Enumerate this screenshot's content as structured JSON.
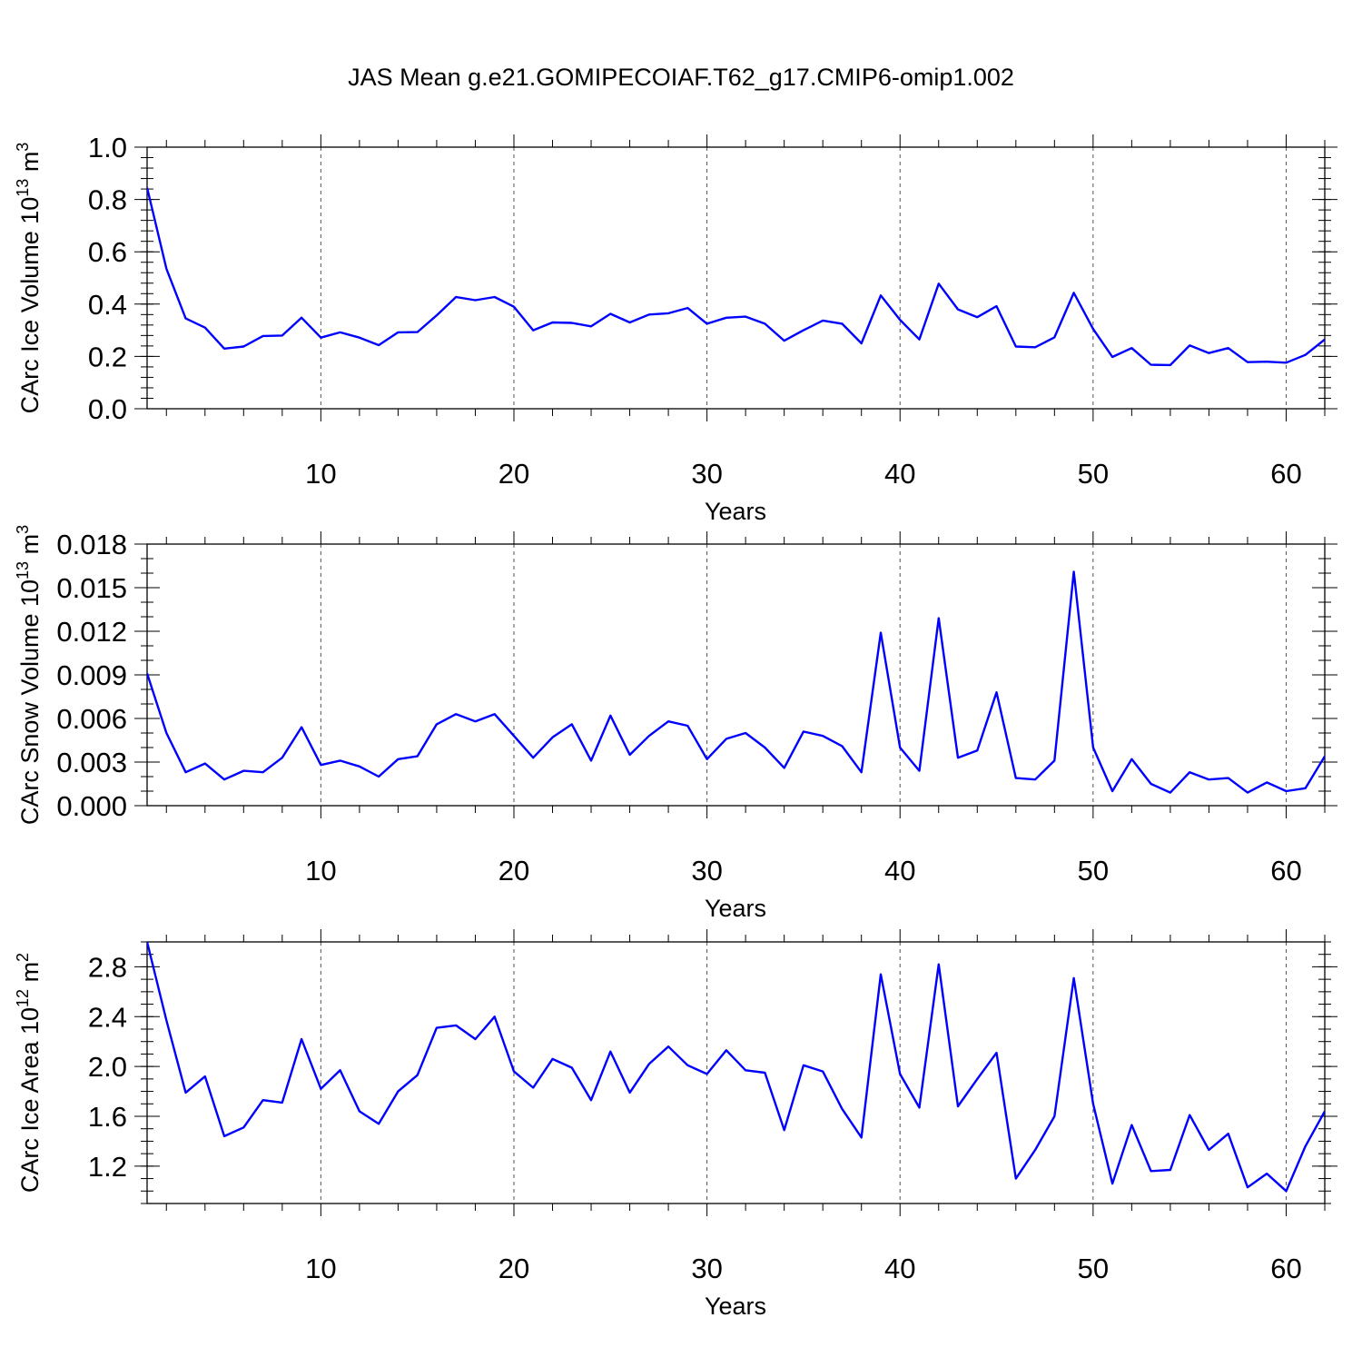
{
  "title": "JAS Mean g.e21.GOMIPECOIAF.T62_g17.CMIP6-omip1.002",
  "series_color": "#0000ff",
  "chart_data": [
    {
      "type": "line",
      "ylabel_text": "CArc Ice Volume 10",
      "ylabel_exp": "13",
      "ylabel_unit": "m",
      "ylabel_unit_exp": "3",
      "xlabel": "Years",
      "xlim": [
        1,
        62
      ],
      "ylim": [
        0,
        1.0
      ],
      "yticks": [
        0.0,
        0.2,
        0.4,
        0.6,
        0.8,
        1.0
      ],
      "ytick_labels": [
        "0.0",
        "0.2",
        "0.4",
        "0.6",
        "0.8",
        "1.0"
      ],
      "yminor_step": 0.04,
      "xticks": [
        10,
        20,
        30,
        40,
        50,
        60
      ],
      "xtick_labels": [
        "10",
        "20",
        "30",
        "40",
        "50",
        "60"
      ],
      "grid_x": [
        10,
        20,
        30,
        40,
        50,
        60
      ],
      "x": [
        1,
        2,
        3,
        4,
        5,
        6,
        7,
        8,
        9,
        10,
        11,
        12,
        13,
        14,
        15,
        16,
        17,
        18,
        19,
        20,
        21,
        22,
        23,
        24,
        25,
        26,
        27,
        28,
        29,
        30,
        31,
        32,
        33,
        34,
        35,
        36,
        37,
        38,
        39,
        40,
        41,
        42,
        43,
        44,
        45,
        46,
        47,
        48,
        49,
        50,
        51,
        52,
        53,
        54,
        55,
        56,
        57,
        58,
        59,
        60,
        61,
        62
      ],
      "y": [
        0.845,
        0.535,
        0.345,
        0.31,
        0.23,
        0.238,
        0.278,
        0.28,
        0.348,
        0.272,
        0.292,
        0.272,
        0.243,
        0.292,
        0.293,
        0.357,
        0.427,
        0.415,
        0.427,
        0.39,
        0.3,
        0.33,
        0.328,
        0.315,
        0.363,
        0.33,
        0.36,
        0.365,
        0.385,
        0.325,
        0.348,
        0.352,
        0.325,
        0.26,
        0.3,
        0.337,
        0.325,
        0.25,
        0.433,
        0.34,
        0.265,
        0.478,
        0.38,
        0.35,
        0.392,
        0.238,
        0.235,
        0.273,
        0.443,
        0.305,
        0.198,
        0.232,
        0.168,
        0.167,
        0.242,
        0.213,
        0.232,
        0.178,
        0.18,
        0.176,
        0.206,
        0.265
      ]
    },
    {
      "type": "line",
      "ylabel_text": "CArc Snow Volume 10",
      "ylabel_exp": "13",
      "ylabel_unit": "m",
      "ylabel_unit_exp": "3",
      "xlabel": "Years",
      "xlim": [
        1,
        62
      ],
      "ylim": [
        0,
        0.018
      ],
      "yticks": [
        0.0,
        0.003,
        0.006,
        0.009,
        0.012,
        0.015,
        0.018
      ],
      "ytick_labels": [
        "0.000",
        "0.003",
        "0.006",
        "0.009",
        "0.012",
        "0.015",
        "0.018"
      ],
      "yminor_step": 0.001,
      "xticks": [
        10,
        20,
        30,
        40,
        50,
        60
      ],
      "xtick_labels": [
        "10",
        "20",
        "30",
        "40",
        "50",
        "60"
      ],
      "grid_x": [
        10,
        20,
        30,
        40,
        50,
        60
      ],
      "x": [
        1,
        2,
        3,
        4,
        5,
        6,
        7,
        8,
        9,
        10,
        11,
        12,
        13,
        14,
        15,
        16,
        17,
        18,
        19,
        20,
        21,
        22,
        23,
        24,
        25,
        26,
        27,
        28,
        29,
        30,
        31,
        32,
        33,
        34,
        35,
        36,
        37,
        38,
        39,
        40,
        41,
        42,
        43,
        44,
        45,
        46,
        47,
        48,
        49,
        50,
        51,
        52,
        53,
        54,
        55,
        56,
        57,
        58,
        59,
        60,
        61,
        62
      ],
      "y": [
        0.0091,
        0.005,
        0.0023,
        0.0029,
        0.0018,
        0.0024,
        0.0023,
        0.0033,
        0.0054,
        0.0028,
        0.0031,
        0.0027,
        0.002,
        0.0032,
        0.0034,
        0.0056,
        0.0063,
        0.0058,
        0.0063,
        0.0048,
        0.0033,
        0.0047,
        0.0056,
        0.0031,
        0.0062,
        0.0035,
        0.0048,
        0.0058,
        0.0055,
        0.0032,
        0.0046,
        0.005,
        0.004,
        0.0026,
        0.0051,
        0.0048,
        0.0041,
        0.0023,
        0.0119,
        0.004,
        0.0024,
        0.0129,
        0.0033,
        0.0038,
        0.0078,
        0.0019,
        0.0018,
        0.0031,
        0.0161,
        0.004,
        0.001,
        0.0032,
        0.0015,
        0.0009,
        0.0023,
        0.0018,
        0.0019,
        0.0009,
        0.0016,
        0.001,
        0.0012,
        0.0034
      ]
    },
    {
      "type": "line",
      "ylabel_text": "CArc Ice Area 10",
      "ylabel_exp": "12",
      "ylabel_unit": "m",
      "ylabel_unit_exp": "2",
      "xlabel": "Years",
      "xlim": [
        1,
        62
      ],
      "ylim": [
        0.9,
        3.0
      ],
      "yticks": [
        1.2,
        1.6,
        2.0,
        2.4,
        2.8
      ],
      "ytick_labels": [
        "1.2",
        "1.6",
        "2.0",
        "2.4",
        "2.8"
      ],
      "yminor_step": 0.1,
      "xticks": [
        10,
        20,
        30,
        40,
        50,
        60
      ],
      "xtick_labels": [
        "10",
        "20",
        "30",
        "40",
        "50",
        "60"
      ],
      "grid_x": [
        10,
        20,
        30,
        40,
        50,
        60
      ],
      "x": [
        1,
        2,
        3,
        4,
        5,
        6,
        7,
        8,
        9,
        10,
        11,
        12,
        13,
        14,
        15,
        16,
        17,
        18,
        19,
        20,
        21,
        22,
        23,
        24,
        25,
        26,
        27,
        28,
        29,
        30,
        31,
        32,
        33,
        34,
        35,
        36,
        37,
        38,
        39,
        40,
        41,
        42,
        43,
        44,
        45,
        46,
        47,
        48,
        49,
        50,
        51,
        52,
        53,
        54,
        55,
        56,
        57,
        58,
        59,
        60,
        61,
        62
      ],
      "y": [
        3.0,
        2.37,
        1.79,
        1.92,
        1.44,
        1.51,
        1.73,
        1.71,
        2.22,
        1.82,
        1.97,
        1.64,
        1.54,
        1.8,
        1.93,
        2.31,
        2.33,
        2.22,
        2.4,
        1.96,
        1.83,
        2.06,
        1.99,
        1.73,
        2.12,
        1.79,
        2.02,
        2.16,
        2.01,
        1.94,
        2.13,
        1.97,
        1.95,
        1.49,
        2.01,
        1.96,
        1.66,
        1.43,
        2.74,
        1.94,
        1.67,
        2.82,
        1.68,
        1.9,
        2.11,
        1.1,
        1.33,
        1.6,
        2.71,
        1.7,
        1.06,
        1.53,
        1.16,
        1.17,
        1.61,
        1.33,
        1.46,
        1.03,
        1.14,
        1.0,
        1.36,
        1.64
      ]
    }
  ]
}
